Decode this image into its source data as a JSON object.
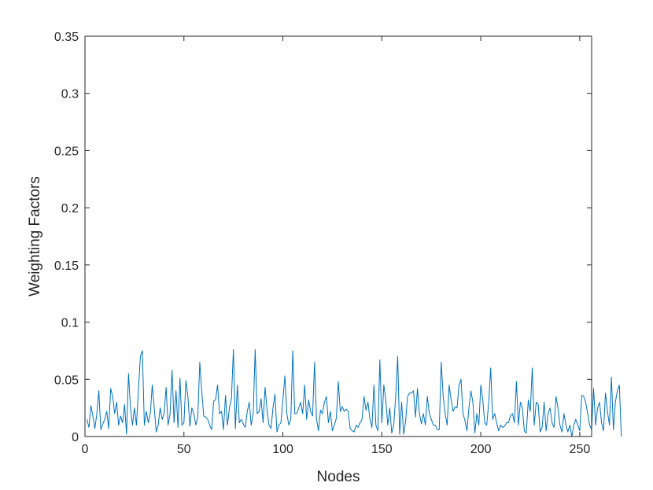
{
  "chart_data": {
    "type": "line",
    "title": "",
    "xlabel": "Nodes",
    "ylabel": "Weighting Factors",
    "xlim": [
      0,
      256
    ],
    "ylim": [
      0,
      0.35
    ],
    "xticks": [
      0,
      50,
      100,
      150,
      200,
      250
    ],
    "xtick_labels": [
      "0",
      "50",
      "100",
      "150",
      "200",
      "250"
    ],
    "yticks": [
      0,
      0.05,
      0.1,
      0.15,
      0.2,
      0.25,
      0.3,
      0.35
    ],
    "ytick_labels": [
      "0",
      "0.05",
      "0.1",
      "0.15",
      "0.2",
      "0.25",
      "0.3",
      "0.35"
    ],
    "grid": false,
    "series": [
      {
        "color": "#0072BD",
        "x_start": 1,
        "x_step": 1,
        "values": [
          0.015,
          0.008,
          0.027,
          0.018,
          0.007,
          0.02,
          0.04,
          0.006,
          0.011,
          0.015,
          0.022,
          0.007,
          0.042,
          0.035,
          0.02,
          0.03,
          0.01,
          0.018,
          0.012,
          0.028,
          0.002,
          0.055,
          0.025,
          0.01,
          0.025,
          0.01,
          0.04,
          0.07,
          0.075,
          0.01,
          0.022,
          0.012,
          0.02,
          0.045,
          0.025,
          0.004,
          0.01,
          0.025,
          0.015,
          0.02,
          0.043,
          0.01,
          0.02,
          0.058,
          0.012,
          0.04,
          0.008,
          0.051,
          0.01,
          0.012,
          0.049,
          0.035,
          0.009,
          0.025,
          0.02,
          0.01,
          0.017,
          0.065,
          0.04,
          0.018,
          0.017,
          0.015,
          0.01,
          0.006,
          0.031,
          0.032,
          0.045,
          0.02,
          0.022,
          0.006,
          0.036,
          0.01,
          0.025,
          0.033,
          0.076,
          0.007,
          0.045,
          0.012,
          0.015,
          0.011,
          0.008,
          0.022,
          0.03,
          0.01,
          0.02,
          0.076,
          0.02,
          0.022,
          0.033,
          0.012,
          0.043,
          0.023,
          0.01,
          0.007,
          0.025,
          0.037,
          0.004,
          0.01,
          0.012,
          0.032,
          0.053,
          0.02,
          0.01,
          0.015,
          0.075,
          0.02,
          0.02,
          0.025,
          0.03,
          0.02,
          0.045,
          0.015,
          0.032,
          0.022,
          0.018,
          0.065,
          0.015,
          0.005,
          0.023,
          0.02,
          0.03,
          0.035,
          0.012,
          0.022,
          0.005,
          0.01,
          0.016,
          0.048,
          0.022,
          0.026,
          0.022,
          0.024,
          0.022,
          0.007,
          0.005,
          0.004,
          0.01,
          0.008,
          0.012,
          0.015,
          0.035,
          0.023,
          0.03,
          0.015,
          0.008,
          0.045,
          0.01,
          0.005,
          0.067,
          0.012,
          0.045,
          0.032,
          0.01,
          0.025,
          0.003,
          0.01,
          0.035,
          0.07,
          0.002,
          0.03,
          0.002,
          0.013,
          0.035,
          0.038,
          0.038,
          0.04,
          0.017,
          0.042,
          0.02,
          0.011,
          0.02,
          0.01,
          0.035,
          0.02,
          0.015,
          0.01,
          0.01,
          0.006,
          0.006,
          0.065,
          0.035,
          0.02,
          0.01,
          0.045,
          0.032,
          0.022,
          0.026,
          0.025,
          0.045,
          0.05,
          0.02,
          0.014,
          0.005,
          0.025,
          0.04,
          0.03,
          0.003,
          0.02,
          0.01,
          0.045,
          0.032,
          0.012,
          0.01,
          0.03,
          0.06,
          0.015,
          0.02,
          0.012,
          0.005,
          0.01,
          0.008,
          0.009,
          0.012,
          0.012,
          0.018,
          0.02,
          0.012,
          0.048,
          0.01,
          0.03,
          0.025,
          0.005,
          0.003,
          0.032,
          0.022,
          0.06,
          0.01,
          0.03,
          0.028,
          0.004,
          0.008,
          0.03,
          0.005,
          0.02,
          0.025,
          0.012,
          0.008,
          0.035,
          0.025,
          0.01,
          0.004,
          0.02,
          0.01,
          0.004,
          0.01,
          0.0,
          0.01,
          0.015,
          0.01,
          0.005,
          0.036,
          0.035,
          0.03,
          0.02,
          0.01,
          0.006,
          0.042,
          0.01,
          0.025,
          0.03,
          0.012,
          0.005,
          0.038,
          0.022,
          0.01,
          0.052,
          0.006,
          0.03,
          0.04,
          0.045,
          0.0
        ]
      }
    ]
  }
}
